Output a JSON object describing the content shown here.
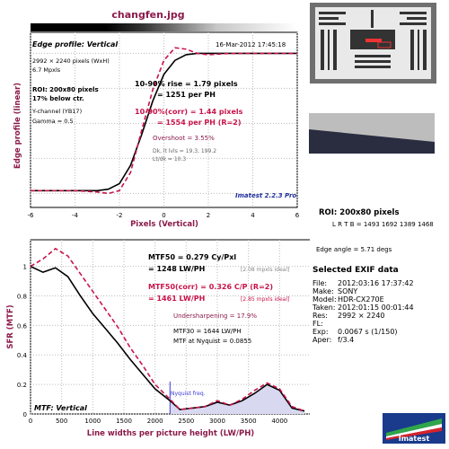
{
  "header": {
    "file_title": "changfen.jpg"
  },
  "edge": {
    "title": "Edge profile: Vertical",
    "timestamp": "16-Mar-2012 17:45:18",
    "dims": "2992 × 2240 pixels (WxH)",
    "mpxls": "6.7 Mpxls",
    "roi": "ROI: 200x80 pixels",
    "below": "17% below ctr.",
    "channel": "Y-channel  (YB17)",
    "gamma": "Gamma = 0.5",
    "rise": "10-90% rise = 1.79 pixels",
    "rise_ph": "= 1251 per PH",
    "corr": "10-90%(corr) = 1.44 pixels",
    "corr_ph": "= 1554 per PH  (R=2)",
    "overshoot": "Overshoot = 3.55%",
    "dk": "Dk, lt lvls = 19.3, 199.2",
    "ltdk": "Lt/dk = 10.3",
    "version": "Imatest 2.2.3 Pro",
    "ylabel": "Edge profile (linear)",
    "xlabel": "Pixels (Vertical)",
    "xticks": [
      "-6",
      "-4",
      "-2",
      "0",
      "2",
      "4",
      "6"
    ]
  },
  "mtf": {
    "title": "MTF: Vertical",
    "mtf50": "MTF50 = 0.279  Cy/Pxl",
    "mtf50_lw": "= 1248 LW/PH",
    "mtf50_ideal": "[2.08 mpxls ideal]",
    "mtf50c": "MTF50(corr) = 0.326  C/P   (R=2)",
    "mtf50c_lw": "= 1461 LW/PH",
    "mtf50c_ideal": "[2.85 mpxls ideal]",
    "undersharp": "Undersharpening = 17.9%",
    "mtf30": "MTF30 = 1644 LW/PH",
    "nyq": "MTF at Nyquist = 0.0855",
    "nyq_label": "Nyquist freq.",
    "ylabel": "SFR (MTF)",
    "xlabel": "Line widths per picture height (LW/PH)",
    "xticks": [
      "0",
      "500",
      "1000",
      "1500",
      "2000",
      "2500",
      "3000",
      "3500",
      "4000"
    ],
    "yticks": [
      "1",
      "0.8",
      "0.6",
      "0.4",
      "0.2",
      "0"
    ]
  },
  "side": {
    "roi": "ROI: 200x80 pixels",
    "lrtb": "L R T B = 1493 1692  1389 1468",
    "edge_angle": "Edge angle = 5.71 degs",
    "exif_title": "Selected EXIF data",
    "exif": [
      {
        "k": "File:",
        "v": "2012:03:16 17:37:42"
      },
      {
        "k": "Make:",
        "v": "SONY"
      },
      {
        "k": "Model:",
        "v": "HDR-CX270E"
      },
      {
        "k": "Taken:",
        "v": "2012:01:15 00:01:44"
      },
      {
        "k": "Res:",
        "v": "2992 × 2240"
      },
      {
        "k": "FL:",
        "v": ""
      },
      {
        "k": "Exp:",
        "v": "0.0067 s  (1/150)"
      },
      {
        "k": "Aper:",
        "v": "f/3.4"
      }
    ],
    "logo": "Imatest"
  },
  "colors": {
    "black_curve": "#000000",
    "corr_curve": "#c8144b",
    "accent": "#8b1a4a",
    "nyq": "#3b3bd6"
  },
  "chart_data": [
    {
      "type": "line",
      "title": "Edge profile: Vertical",
      "xlabel": "Pixels (Vertical)",
      "ylabel": "Edge profile (linear)",
      "xlim": [
        -6,
        6
      ],
      "series": [
        {
          "x": [
            -6,
            -4,
            -3,
            -2.5,
            -2,
            -1.5,
            -1,
            -0.5,
            0,
            0.5,
            1,
            1.5,
            2,
            3,
            4,
            6
          ],
          "y": [
            0.02,
            0.02,
            0.02,
            0.03,
            0.07,
            0.2,
            0.42,
            0.66,
            0.85,
            0.95,
            0.99,
            1.0,
            1.0,
            1.0,
            1.0,
            1.0
          ]
        },
        {
          "x": [
            -6,
            -4,
            -3,
            -2.5,
            -2,
            -1.5,
            -1,
            -0.5,
            0,
            0.5,
            1,
            1.5,
            2,
            3,
            4,
            6
          ],
          "y": [
            0.02,
            0.02,
            0.01,
            0.0,
            0.02,
            0.15,
            0.45,
            0.74,
            0.95,
            1.04,
            1.03,
            1.0,
            0.99,
            1.0,
            1.0,
            1.0
          ]
        }
      ]
    },
    {
      "type": "line",
      "title": "MTF: Vertical",
      "xlabel": "Line widths per picture height (LW/PH)",
      "ylabel": "SFR (MTF)",
      "xlim": [
        0,
        4500
      ],
      "ylim": [
        0,
        1.1
      ],
      "series": [
        {
          "x": [
            0,
            200,
            400,
            600,
            800,
            1000,
            1200,
            1400,
            1600,
            1800,
            2000,
            2240,
            2400,
            2600,
            2800,
            3000,
            3200,
            3400,
            3600,
            3800,
            4000,
            4200,
            4400
          ],
          "y": [
            1.0,
            0.96,
            0.99,
            0.93,
            0.8,
            0.68,
            0.58,
            0.48,
            0.37,
            0.27,
            0.17,
            0.09,
            0.03,
            0.04,
            0.05,
            0.08,
            0.06,
            0.09,
            0.14,
            0.2,
            0.16,
            0.04,
            0.02
          ]
        },
        {
          "x": [
            0,
            200,
            400,
            600,
            800,
            1000,
            1200,
            1400,
            1600,
            1800,
            2000,
            2240,
            2400,
            2600,
            2800,
            3000,
            3200,
            3400,
            3600,
            3800,
            4000,
            4200,
            4400
          ],
          "y": [
            1.0,
            1.05,
            1.12,
            1.07,
            0.95,
            0.83,
            0.71,
            0.59,
            0.45,
            0.33,
            0.2,
            0.1,
            0.03,
            0.04,
            0.05,
            0.09,
            0.06,
            0.1,
            0.16,
            0.21,
            0.17,
            0.05,
            0.02
          ]
        }
      ]
    }
  ]
}
